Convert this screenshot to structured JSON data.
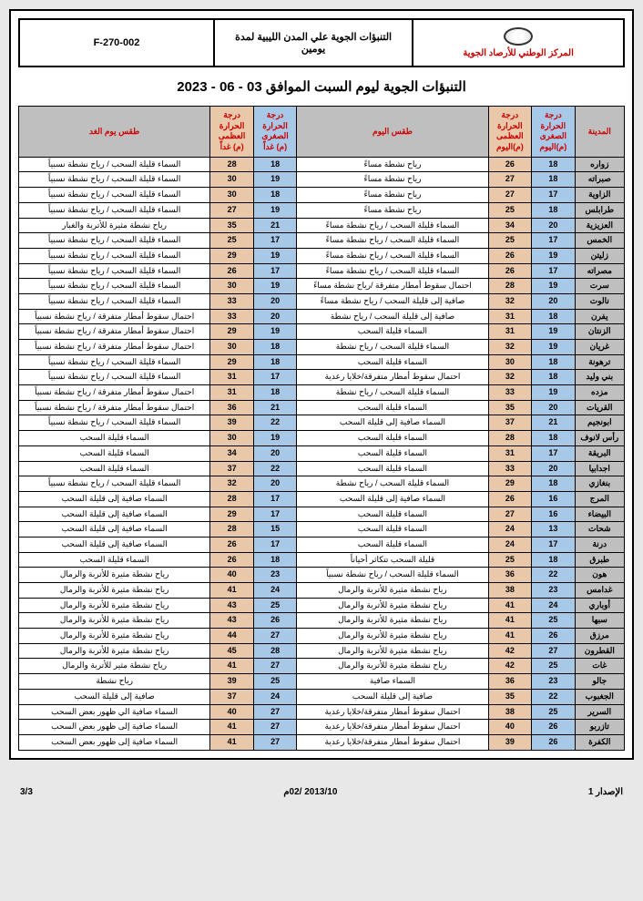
{
  "header": {
    "formCode": "F-270-002",
    "docTitle": "التنبؤات الجوية علي المدن الليبية لمدة يومين",
    "orgName": "المركز الوطني للأرصاد الجوية"
  },
  "title": "التنبؤات الجوية ليوم السبت الموافق 03 - 06 - 2023",
  "columns": {
    "city": "المدينة",
    "minToday": "درجة الحرارة الصغرى (م)اليوم",
    "maxToday": "درجة الحرارة العظمى (م)اليوم",
    "weatherToday": "طقس اليوم",
    "minTmrw": "درجة الحرارة الصغرى (م) غداً",
    "maxTmrw": "درجة الحرارة العظمى (م) غداً",
    "weatherTmrw": "طقس يوم الغد"
  },
  "rows": [
    {
      "city": "زواره",
      "minT": "18",
      "maxT": "26",
      "wT": "رياح نشطة مساءً",
      "minM": "18",
      "maxM": "28",
      "wM": "السماء قليلة السحب / رياح نشطة نسبياً"
    },
    {
      "city": "صبراته",
      "minT": "18",
      "maxT": "27",
      "wT": "رياح نشطة مساءً",
      "minM": "19",
      "maxM": "30",
      "wM": "السماء قليلة السحب / رياح نشطة نسبياً"
    },
    {
      "city": "الزاوية",
      "minT": "17",
      "maxT": "27",
      "wT": "رياح نشطة مساءً",
      "minM": "18",
      "maxM": "30",
      "wM": "السماء قليلة السحب / رياح نشطة نسبياً"
    },
    {
      "city": "طرابلس",
      "minT": "18",
      "maxT": "25",
      "wT": "رياح نشطة مساءً",
      "minM": "19",
      "maxM": "27",
      "wM": "السماء قليلة السحب / رياح نشطة نسبياً"
    },
    {
      "city": "العزيزية",
      "minT": "20",
      "maxT": "34",
      "wT": "السماء قليلة السحب / رياح نشطة مساءً",
      "minM": "21",
      "maxM": "35",
      "wM": "رياح نشطة مثيرة للأتربة والغبار"
    },
    {
      "city": "الخمس",
      "minT": "17",
      "maxT": "25",
      "wT": "السماء قليلة السحب / رياح نشطة مساءً",
      "minM": "17",
      "maxM": "25",
      "wM": "السماء قليلة السحب / رياح نشطة نسبياً"
    },
    {
      "city": "زليتن",
      "minT": "19",
      "maxT": "26",
      "wT": "السماء قليلة السحب / رياح نشطة مساءً",
      "minM": "19",
      "maxM": "29",
      "wM": "السماء قليلة السحب / رياح نشطة نسبياً"
    },
    {
      "city": "مصراته",
      "minT": "17",
      "maxT": "26",
      "wT": "السماء قليلة السحب / رياح نشطة مساءً",
      "minM": "17",
      "maxM": "26",
      "wM": "السماء قليلة السحب / رياح نشطة نسبياً"
    },
    {
      "city": "سرت",
      "minT": "19",
      "maxT": "28",
      "wT": "احتمال سقوط أمطار متفرقة /رياح نشطة مساءً",
      "minM": "19",
      "maxM": "30",
      "wM": "السماء قليلة السحب / رياح نشطة نسبياً"
    },
    {
      "city": "نالوت",
      "minT": "20",
      "maxT": "32",
      "wT": "صافية إلى قليلة السحب / رياح نشطة مساءً",
      "minM": "20",
      "maxM": "33",
      "wM": "السماء قليلة السحب / رياح نشطة نسبياً"
    },
    {
      "city": "يفرن",
      "minT": "18",
      "maxT": "31",
      "wT": "صافية إلى قليلة السحب / رياح نشطة",
      "minM": "20",
      "maxM": "33",
      "wM": "احتمال سقوط أمطار متفرقة / رياح نشطة نسبياً"
    },
    {
      "city": "الزنتان",
      "minT": "19",
      "maxT": "31",
      "wT": "السماء قليلة السحب",
      "minM": "19",
      "maxM": "29",
      "wM": "احتمال سقوط أمطار متفرقة / رياح نشطة نسبياً"
    },
    {
      "city": "غريان",
      "minT": "19",
      "maxT": "32",
      "wT": "السماء قليلة السحب / رياح نشطة",
      "minM": "18",
      "maxM": "30",
      "wM": "احتمال سقوط أمطار متفرقة / رياح نشطة نسبياً"
    },
    {
      "city": "ترهونة",
      "minT": "18",
      "maxT": "30",
      "wT": "السماء قليلة السحب",
      "minM": "18",
      "maxM": "29",
      "wM": "السماء قليلة السحب / رياح نشطة نسبياً"
    },
    {
      "city": "بني وليد",
      "minT": "18",
      "maxT": "32",
      "wT": "احتمال سقوط أمطار متفرقة/خلايا رعدية",
      "minM": "17",
      "maxM": "31",
      "wM": "السماء قليلة السحب / رياح نشطة نسبياً"
    },
    {
      "city": "مزده",
      "minT": "19",
      "maxT": "33",
      "wT": "السماء قليلة السحب / رياح نشطة",
      "minM": "18",
      "maxM": "31",
      "wM": "احتمال سقوط أمطار متفرقة / رياح نشطة نسبياً"
    },
    {
      "city": "القريات",
      "minT": "20",
      "maxT": "35",
      "wT": "السماء قليلة السحب",
      "minM": "21",
      "maxM": "36",
      "wM": "احتمال سقوط أمطار متفرقة / رياح نشطة نسبياً"
    },
    {
      "city": "ابونجيم",
      "minT": "21",
      "maxT": "37",
      "wT": "السماء صافية إلى قليلة السحب",
      "minM": "22",
      "maxM": "39",
      "wM": "السماء قليلة السحب / رياح نشطة نسبياً"
    },
    {
      "city": "رأس لانوف",
      "minT": "18",
      "maxT": "28",
      "wT": "السماء قليلة السحب",
      "minM": "19",
      "maxM": "30",
      "wM": "السماء قليلة السحب"
    },
    {
      "city": "البريقة",
      "minT": "17",
      "maxT": "31",
      "wT": "السماء قليلة السحب",
      "minM": "20",
      "maxM": "34",
      "wM": "السماء قليلة السحب"
    },
    {
      "city": "اجدابيا",
      "minT": "20",
      "maxT": "33",
      "wT": "السماء قليلة السحب",
      "minM": "22",
      "maxM": "37",
      "wM": "السماء قليلة السحب"
    },
    {
      "city": "بنغازي",
      "minT": "18",
      "maxT": "29",
      "wT": "السماء قليلة السحب / رياح نشطة",
      "minM": "20",
      "maxM": "32",
      "wM": "السماء قليلة السحب / رياح نشطة نسبياً"
    },
    {
      "city": "المرج",
      "minT": "16",
      "maxT": "26",
      "wT": "السماء صافية إلى قليلة السحب",
      "minM": "17",
      "maxM": "28",
      "wM": "السماء صافية إلى قليلة السحب"
    },
    {
      "city": "البيضاء",
      "minT": "16",
      "maxT": "27",
      "wT": "السماء قليلة السحب",
      "minM": "17",
      "maxM": "29",
      "wM": "السماء صافية إلى قليلة السحب"
    },
    {
      "city": "شحات",
      "minT": "13",
      "maxT": "24",
      "wT": "السماء قليلة السحب",
      "minM": "15",
      "maxM": "28",
      "wM": "السماء صافية إلى قليلة السحب"
    },
    {
      "city": "درنة",
      "minT": "17",
      "maxT": "24",
      "wT": "السماء قليلة السحب",
      "minM": "17",
      "maxM": "26",
      "wM": "السماء صافية إلى قليلة السحب"
    },
    {
      "city": "طبرق",
      "minT": "18",
      "maxT": "25",
      "wT": "قليلة السحب تتكاثر أحياناً",
      "minM": "18",
      "maxM": "26",
      "wM": "السماء قليلة السحب"
    },
    {
      "city": "هون",
      "minT": "22",
      "maxT": "36",
      "wT": "السماء قليلة السحب / رياح نشطة نسبياً",
      "minM": "23",
      "maxM": "40",
      "wM": "رياح نشطة مثيرة للأتربة والرمال"
    },
    {
      "city": "غدامس",
      "minT": "23",
      "maxT": "38",
      "wT": "رياح نشطة مثيرة للأتربة والرمال",
      "minM": "24",
      "maxM": "41",
      "wM": "رياح نشطة مثيرة للأتربة والرمال"
    },
    {
      "city": "أوباري",
      "minT": "24",
      "maxT": "41",
      "wT": "رياح نشطة مثيرة للأتربة والرمال",
      "minM": "25",
      "maxM": "43",
      "wM": "رياح نشطة مثيرة للأتربة والرمال"
    },
    {
      "city": "سبها",
      "minT": "25",
      "maxT": "41",
      "wT": "رياح نشطة مثيرة للأتربة والرمال",
      "minM": "26",
      "maxM": "43",
      "wM": "رياح نشطة مثيرة للأتربة والرمال"
    },
    {
      "city": "مرزق",
      "minT": "26",
      "maxT": "41",
      "wT": "رياح نشطة مثيرة للأتربة والرمال",
      "minM": "27",
      "maxM": "44",
      "wM": "رياح نشطة مثيرة للأتربة والرمال"
    },
    {
      "city": "القطرون",
      "minT": "27",
      "maxT": "42",
      "wT": "رياح نشطة مثيرة للأتربة والرمال",
      "minM": "28",
      "maxM": "45",
      "wM": "رياح نشطة مثيرة للأتربة والرمال"
    },
    {
      "city": "غات",
      "minT": "25",
      "maxT": "42",
      "wT": "رياح نشطة مثيرة للأتربة والرمال",
      "minM": "27",
      "maxM": "41",
      "wM": "رياح نشطة مثير للأتربة والرمال"
    },
    {
      "city": "جالو",
      "minT": "23",
      "maxT": "36",
      "wT": "السماء صافية",
      "minM": "25",
      "maxM": "39",
      "wM": "رياح نشطة"
    },
    {
      "city": "الجغبوب",
      "minT": "22",
      "maxT": "35",
      "wT": "صافية إلى قليلة السحب",
      "minM": "24",
      "maxM": "37",
      "wM": "صافية إلى قليلة السحب"
    },
    {
      "city": "السرير",
      "minT": "25",
      "maxT": "38",
      "wT": "احتمال سقوط أمطار متفرقة/خلايا رعدية",
      "minM": "27",
      "maxM": "40",
      "wM": "السماء صافية الي ظهور بعض السحب"
    },
    {
      "city": "تازربو",
      "minT": "26",
      "maxT": "40",
      "wT": "احتمال سقوط أمطار متفرقة/خلايا رعدية",
      "minM": "27",
      "maxM": "41",
      "wM": "السماء صافية إلى ظهور بعض السحب"
    },
    {
      "city": "الكفرة",
      "minT": "26",
      "maxT": "39",
      "wT": "احتمال سقوط أمطار متفرقة/خلايا رعدية",
      "minM": "27",
      "maxM": "41",
      "wM": "السماء صافية إلى ظهور بعض السحب"
    }
  ],
  "footer": {
    "version": "الإصدار 1",
    "date": "2013/10 /02م",
    "page": "3/3"
  }
}
